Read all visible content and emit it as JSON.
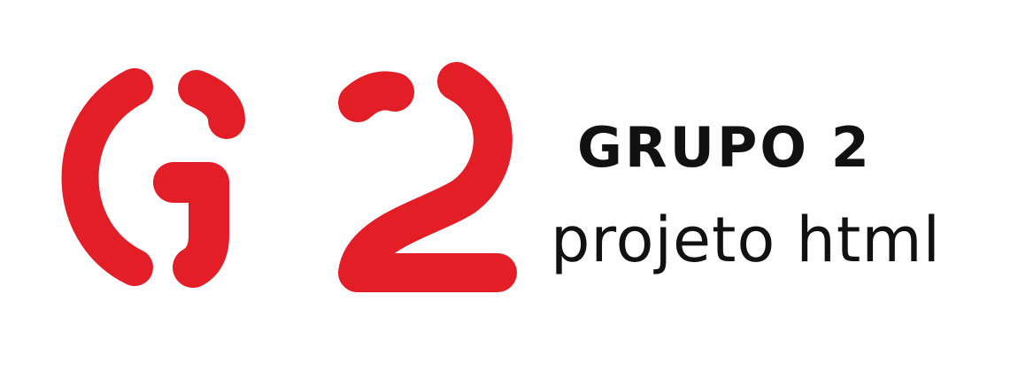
{
  "logo": {
    "icon": "g2-logo-icon",
    "accent_color": "#e41e26",
    "text_color": "#111111"
  },
  "wordmark": {
    "title": "GRUPO 2",
    "subtitle": "projeto html"
  }
}
